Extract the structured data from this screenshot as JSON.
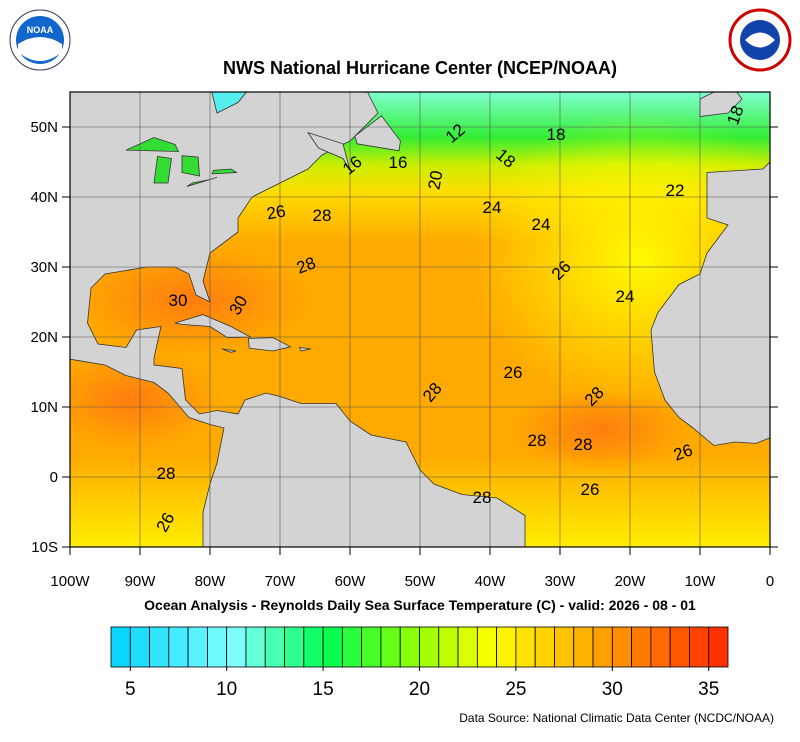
{
  "header": {
    "title": "NWS National Hurricane Center (NCEP/NOAA)"
  },
  "map": {
    "x_labels": [
      "100W",
      "90W",
      "80W",
      "70W",
      "60W",
      "50W",
      "40W",
      "30W",
      "20W",
      "10W",
      "0"
    ],
    "y_labels": [
      "50N",
      "40N",
      "30N",
      "20N",
      "10N",
      "0",
      "10S"
    ],
    "contour_labels": [
      12,
      18,
      16,
      16,
      20,
      18,
      18,
      22,
      24,
      24,
      26,
      28,
      28,
      26,
      24,
      30,
      30,
      26,
      28,
      28,
      28,
      28,
      26,
      28,
      26,
      28,
      26
    ]
  },
  "caption": "Ocean Analysis - Reynolds Daily Sea Surface Temperature (C) - valid: 2026 - 08 - 01",
  "colorbar": {
    "lim": [
      4,
      36
    ],
    "ticks": [
      5,
      10,
      15,
      20,
      25,
      30,
      35
    ]
  },
  "source": "Data Source: National Climatic Data Center (NCDC/NOAA)"
}
